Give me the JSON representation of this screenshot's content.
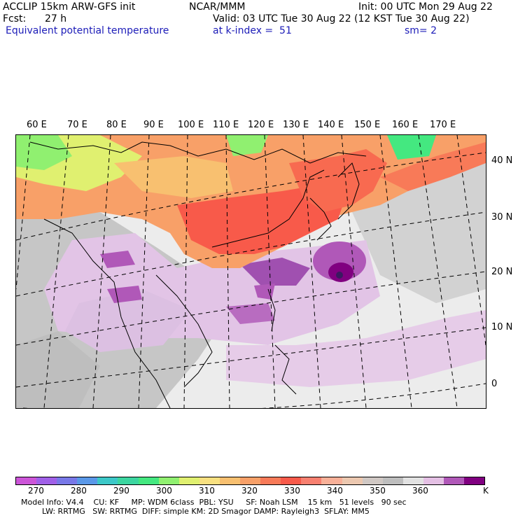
{
  "header": {
    "model_line": "ACCLIP 15km ARW-GFS init",
    "fcst_label": "Fcst:",
    "fcst_value": "27 h",
    "field_name": "Equivalent potential temperature",
    "center": "NCAR/MMM",
    "init": "Init: 00 UTC Mon 29 Aug 22",
    "valid": "Valid: 03 UTC Tue 30 Aug 22 (12 KST Tue 30 Aug 22)",
    "level": "at k-index =  51",
    "smoothing": "sm= 2"
  },
  "map": {
    "lon_labels": [
      "60 E",
      "70 E",
      "80 E",
      "90 E",
      "100 E",
      "110 E",
      "120 E",
      "130 E",
      "140 E",
      "150 E",
      "160 E",
      "170 E"
    ],
    "lat_labels": [
      "40 N",
      "30 N",
      "20 N",
      "10 N",
      "0"
    ]
  },
  "colorbar": {
    "colors": [
      "#cc55d8",
      "#a060e8",
      "#7878e8",
      "#5a98e8",
      "#3cc8c8",
      "#3cd6a0",
      "#44e880",
      "#90f070",
      "#e0f070",
      "#f8e080",
      "#f8c070",
      "#f8a068",
      "#f87a58",
      "#f85a4a",
      "#f88070",
      "#f8b098",
      "#ecc8b0",
      "#d0c8c4",
      "#bebebe",
      "#e2e2e2",
      "#e4c0e4",
      "#b058b8",
      "#800080"
    ],
    "labels": [
      "270",
      "280",
      "290",
      "300",
      "310",
      "320",
      "330",
      "340",
      "350",
      "360"
    ],
    "unit": "K"
  },
  "footer": {
    "line1": "Model Info: V4.4    CU: KF     MP: WDM 6class  PBL: YSU     SF: Noah LSM    15 km   51 levels   90 sec",
    "line2": "LW: RRTMG   SW: RRTMG  DIFF: simple KM: 2D Smagor DAMP: Rayleigh3  SFLAY: MM5"
  }
}
